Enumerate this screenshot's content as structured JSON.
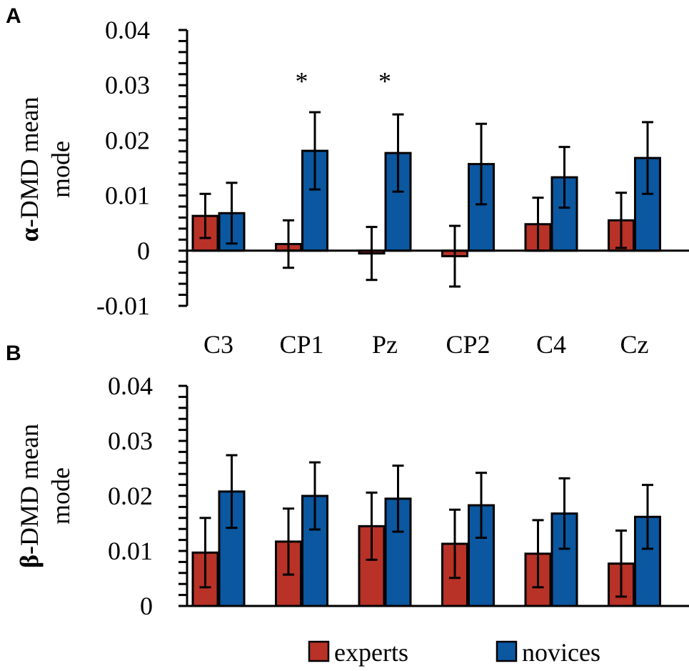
{
  "legend": {
    "experts_label": "experts",
    "novices_label": "novices",
    "experts_color": "#b83227",
    "novices_color": "#0b57a0"
  },
  "chart_data": [
    {
      "panel": "A",
      "type": "bar",
      "ylabel_symbol": "α",
      "ylabel_line1": "-DMD mean",
      "ylabel_line2": "mode",
      "ylim": [
        -0.01,
        0.04
      ],
      "yticks": [
        -0.01,
        0,
        0.01,
        0.02,
        0.03,
        0.04
      ],
      "ytick_labels": [
        "-0.01",
        "0",
        "0.01",
        "0.02",
        "0.03",
        "0.04"
      ],
      "categories": [
        "C3",
        "CP1",
        "Pz",
        "CP2",
        "C4",
        "Cz"
      ],
      "show_category_labels": true,
      "series": [
        {
          "name": "experts",
          "values": [
            0.0063,
            0.0012,
            -0.0005,
            -0.001,
            0.0048,
            0.0055
          ],
          "errors": [
            0.004,
            0.0043,
            0.0048,
            0.0055,
            0.0048,
            0.005
          ]
        },
        {
          "name": "novices",
          "values": [
            0.0068,
            0.0181,
            0.0177,
            0.0157,
            0.0133,
            0.0168
          ],
          "errors": [
            0.0055,
            0.007,
            0.007,
            0.0073,
            0.0055,
            0.0065
          ]
        }
      ],
      "annotations": [
        {
          "category": "CP1",
          "text": "*"
        },
        {
          "category": "Pz",
          "text": "*"
        }
      ]
    },
    {
      "panel": "B",
      "type": "bar",
      "ylabel_symbol": "β",
      "ylabel_line1": "-DMD mean",
      "ylabel_line2": "mode",
      "ylim": [
        0,
        0.04
      ],
      "yticks": [
        0,
        0.01,
        0.02,
        0.03,
        0.04
      ],
      "ytick_labels": [
        "0",
        "0.01",
        "0.02",
        "0.03",
        "0.04"
      ],
      "categories": [
        "C3",
        "CP1",
        "Pz",
        "CP2",
        "C4",
        "Cz"
      ],
      "show_category_labels": false,
      "series": [
        {
          "name": "experts",
          "values": [
            0.0097,
            0.0117,
            0.0145,
            0.0113,
            0.0095,
            0.0077
          ],
          "errors": [
            0.0063,
            0.006,
            0.0061,
            0.0062,
            0.0061,
            0.006
          ]
        },
        {
          "name": "novices",
          "values": [
            0.0208,
            0.02,
            0.0195,
            0.0183,
            0.0168,
            0.0162
          ],
          "errors": [
            0.0066,
            0.0061,
            0.006,
            0.0059,
            0.0064,
            0.0058
          ]
        }
      ],
      "annotations": []
    }
  ]
}
